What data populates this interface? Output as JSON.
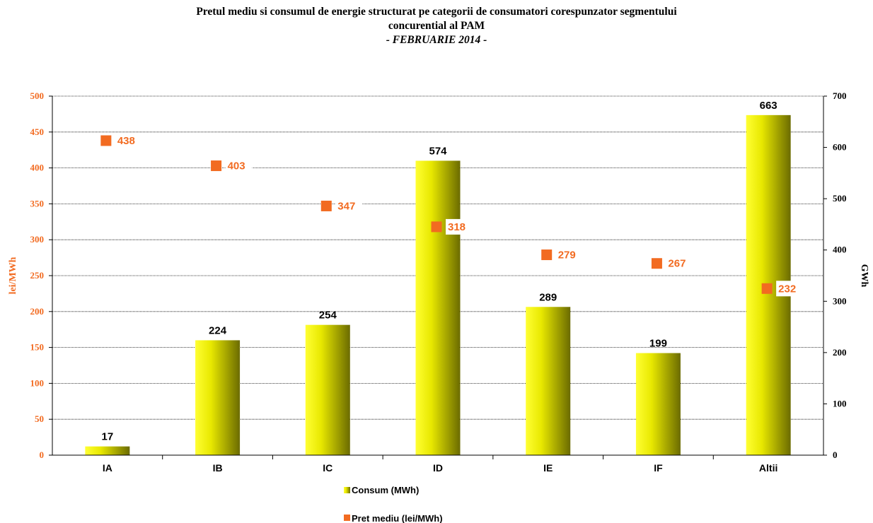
{
  "title": {
    "line1": "Pretul mediu si consumul de energie structurat pe categorii de consumatori corespunzator segmentului",
    "line2": "concurential al PAM",
    "line3": "- FEBRUARIE 2014 -"
  },
  "chart_data": {
    "type": "bar",
    "categories": [
      "IA",
      "IB",
      "IC",
      "ID",
      "IE",
      "IF",
      "Altii"
    ],
    "series": [
      {
        "name": "Consum (MWh)",
        "type": "bar",
        "axis": "right",
        "values": [
          17,
          224,
          254,
          574,
          289,
          199,
          663
        ]
      },
      {
        "name": "Pret mediu (lei/MWh)",
        "type": "scatter",
        "axis": "left",
        "values": [
          438,
          403,
          347,
          318,
          279,
          267,
          232
        ]
      }
    ],
    "ylabel_left": "lei/MWh",
    "ylabel_right": "GWh",
    "ylim_left": [
      0,
      500
    ],
    "ylim_right": [
      0,
      700
    ],
    "yticks_left": [
      "0",
      "50",
      "100",
      "150",
      "200",
      "250",
      "300",
      "350",
      "400",
      "450",
      "500"
    ],
    "yticks_right": [
      "0",
      "100",
      "200",
      "300",
      "400",
      "500",
      "600",
      "700"
    ],
    "grid": true,
    "legend_position": "bottom",
    "colors": {
      "bar_light": "#FFFF33",
      "bar_dark": "#6B6B00",
      "point": "#F26B21",
      "left_axis_text": "#F26B21"
    }
  }
}
